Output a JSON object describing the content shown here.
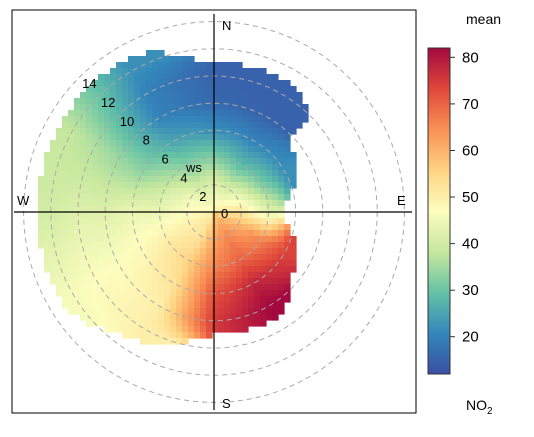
{
  "chart_data": {
    "type": "heatmap",
    "subtype": "polar-plot",
    "title": "",
    "legend": {
      "title": "mean",
      "ticks": [
        "80",
        "70",
        "60",
        "50",
        "40",
        "30",
        "20"
      ],
      "tick_values": [
        80,
        70,
        60,
        50,
        40,
        30,
        20
      ],
      "range": [
        12,
        82
      ],
      "placement": "right"
    },
    "pollutant_label": {
      "main": "NO",
      "sub": "2"
    },
    "compass": {
      "north": "N",
      "south": "S",
      "east": "E",
      "west": "W"
    },
    "radial_axis": {
      "unit_label": "ws",
      "ticks": [
        "0",
        "2",
        "4",
        "6",
        "8",
        "10",
        "12",
        "14"
      ],
      "tick_values": [
        0,
        2,
        4,
        6,
        8,
        10,
        12,
        14
      ],
      "max": 15
    },
    "grid": true,
    "colorscale": [
      "#3a4fa3",
      "#3387bb",
      "#65c2a6",
      "#c7e89e",
      "#fdfdbe",
      "#fed382",
      "#f99155",
      "#e0473a",
      "#a3083f"
    ],
    "surface": {
      "direction_deg": [
        0,
        30,
        60,
        90,
        120,
        150,
        180,
        210,
        240,
        270,
        300,
        330
      ],
      "speed": [
        0,
        2,
        4,
        6,
        8,
        10,
        12,
        14
      ],
      "values": [
        [
          50,
          42,
          32,
          22,
          16,
          15,
          null,
          null
        ],
        [
          50,
          40,
          28,
          20,
          15,
          15,
          null,
          null
        ],
        [
          50,
          45,
          32,
          22,
          null,
          null,
          null,
          null
        ],
        [
          52,
          52,
          42,
          null,
          null,
          null,
          null,
          null
        ],
        [
          56,
          60,
          66,
          74,
          null,
          null,
          null,
          null
        ],
        [
          58,
          66,
          70,
          78,
          82,
          null,
          null,
          null
        ],
        [
          56,
          62,
          66,
          72,
          75,
          null,
          null,
          null
        ],
        [
          52,
          52,
          55,
          52,
          50,
          50,
          null,
          null
        ],
        [
          50,
          50,
          50,
          48,
          47,
          47,
          46,
          null
        ],
        [
          48,
          47,
          44,
          44,
          42,
          42,
          40,
          null
        ],
        [
          48,
          45,
          38,
          33,
          34,
          36,
          38,
          null
        ],
        [
          48,
          40,
          32,
          25,
          20,
          20,
          22,
          null
        ]
      ]
    }
  }
}
